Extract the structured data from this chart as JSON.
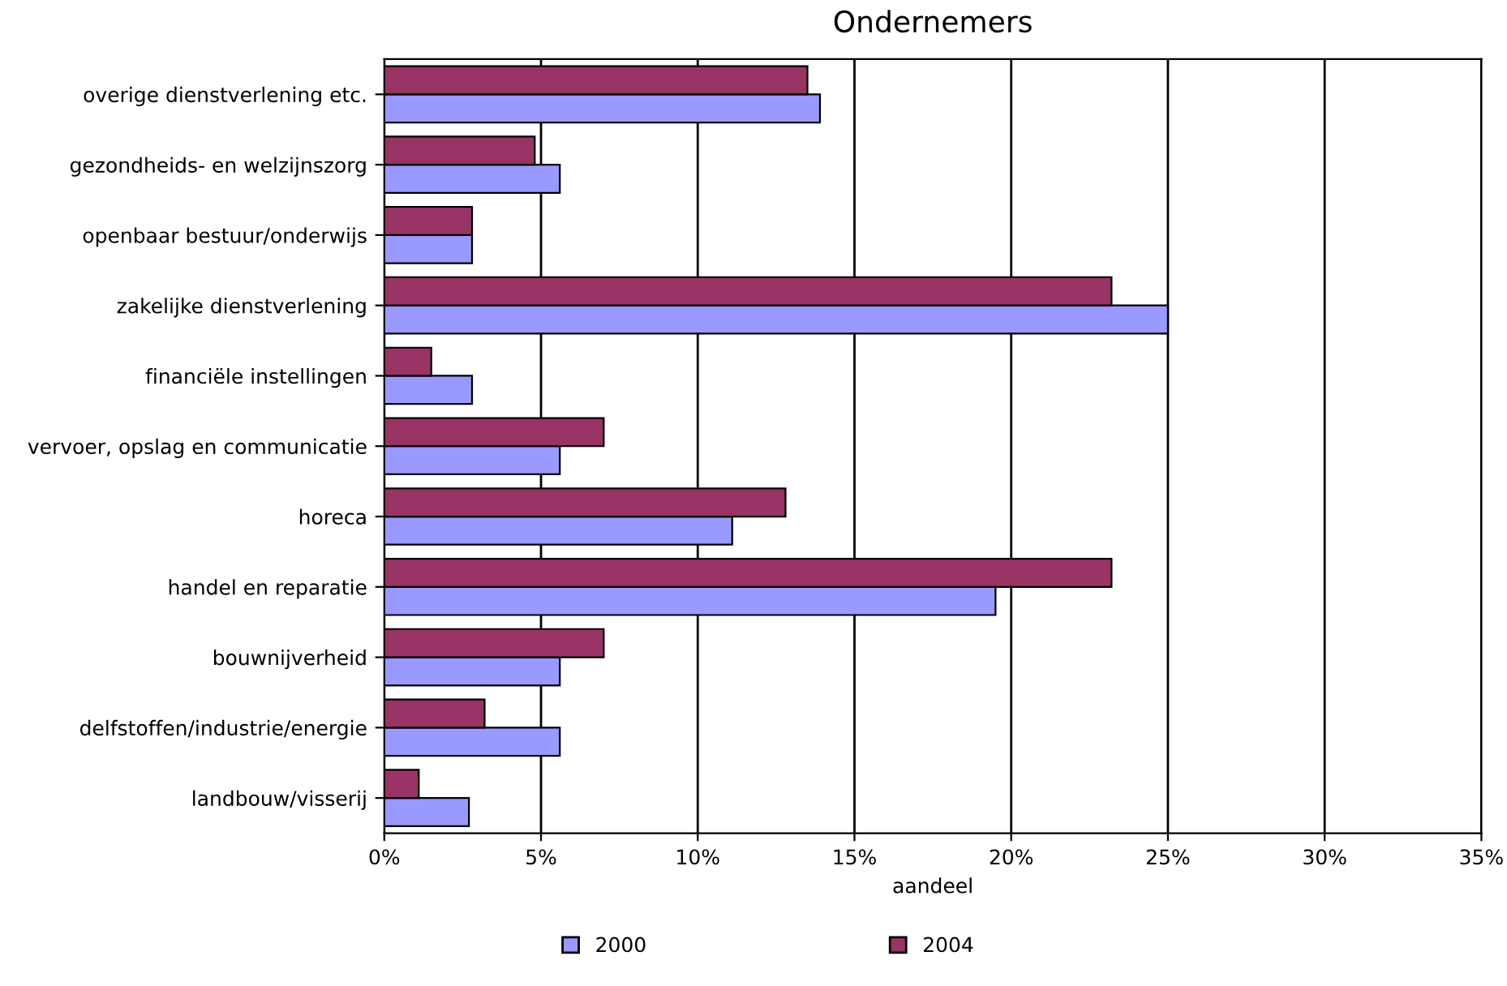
{
  "chart_data": {
    "type": "bar",
    "orientation": "horizontal",
    "title": "Ondernemers",
    "xlabel": "aandeel",
    "categories": [
      "overige dienstverlening etc.",
      "gezondheids- en welzijnszorg",
      "openbaar bestuur/onderwijs",
      "zakelijke dienstverlening",
      "financiële instellingen",
      "vervoer, opslag en communicatie",
      "horeca",
      "handel en reparatie",
      "bouwnijverheid",
      "delfstoffen/industrie/energie",
      "landbouw/visserij"
    ],
    "series": [
      {
        "name": "2000",
        "color": "#9999ff",
        "values": [
          13.9,
          5.6,
          2.8,
          25.0,
          2.8,
          5.6,
          11.1,
          19.5,
          5.6,
          5.6,
          2.7
        ]
      },
      {
        "name": "2004",
        "color": "#993366",
        "values": [
          13.5,
          4.8,
          2.8,
          23.2,
          1.5,
          7.0,
          12.8,
          23.2,
          7.0,
          3.2,
          1.1
        ]
      }
    ],
    "xlim": [
      0,
      35
    ],
    "xticks": [
      {
        "value": 0,
        "label": "0%"
      },
      {
        "value": 5,
        "label": "5%"
      },
      {
        "value": 10,
        "label": "10%"
      },
      {
        "value": 15,
        "label": "15%"
      },
      {
        "value": 20,
        "label": "20%"
      },
      {
        "value": 25,
        "label": "25%"
      },
      {
        "value": 30,
        "label": "30%"
      },
      {
        "value": 35,
        "label": "35%"
      }
    ],
    "grid": "x",
    "legend": "bottom"
  }
}
